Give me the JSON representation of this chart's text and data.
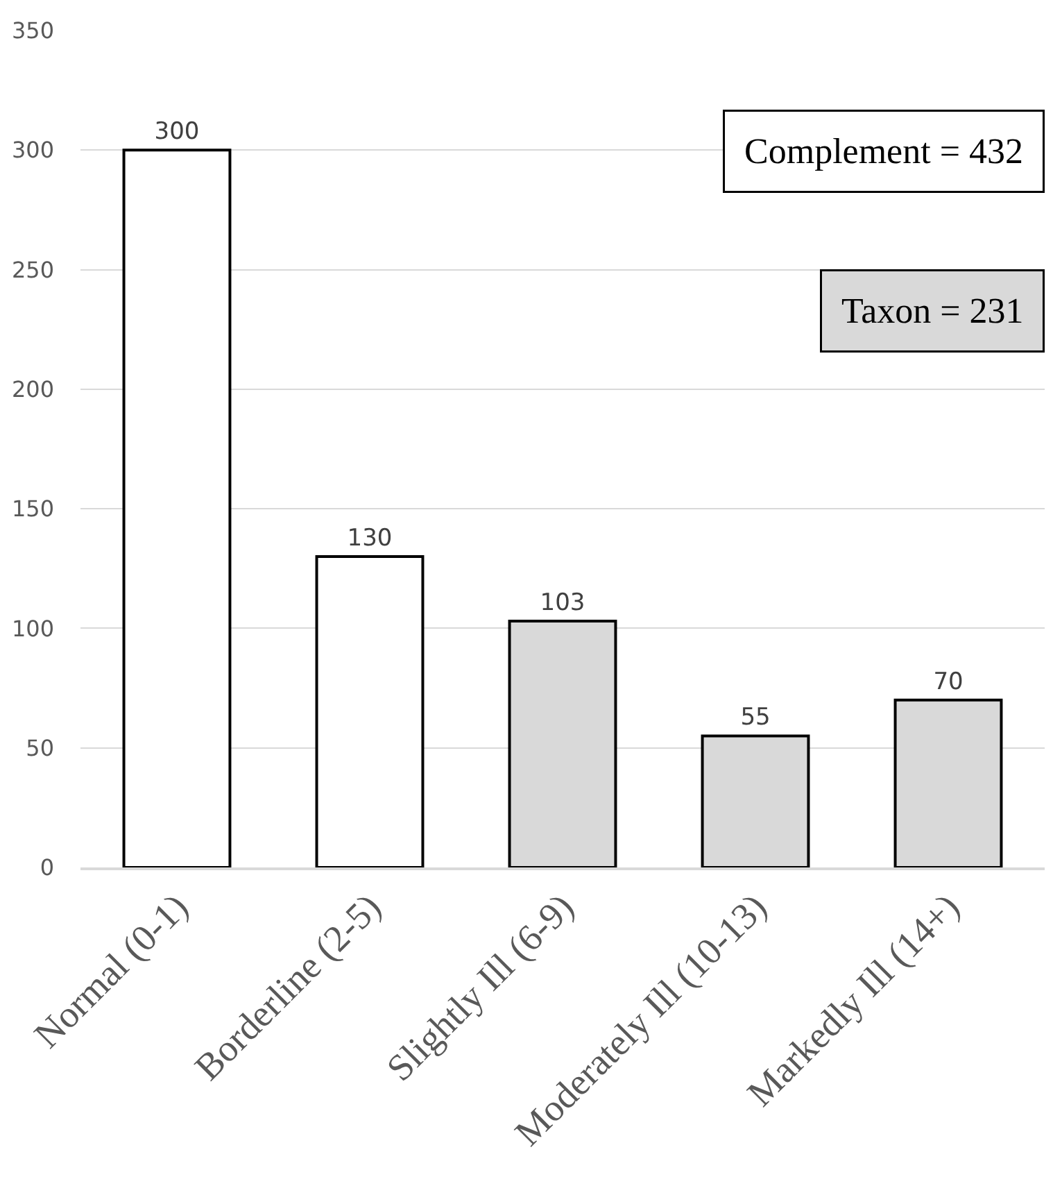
{
  "chart_data": {
    "type": "bar",
    "categories": [
      "Normal (0-1)",
      "Borderline (2-5)",
      "Slightly Ill (6-9)",
      "Moderately Ill (10-13)",
      "Markedly Ill (14+)"
    ],
    "series": [
      {
        "name": "Complement = 432",
        "color": "#ffffff",
        "values": [
          300,
          130,
          null,
          null,
          null
        ]
      },
      {
        "name": "Taxon = 231",
        "color": "#d9d9d9",
        "values": [
          null,
          null,
          103,
          55,
          70
        ]
      }
    ],
    "ylim": [
      0,
      350
    ],
    "yticks": [
      0,
      50,
      100,
      150,
      200,
      250,
      300,
      350
    ],
    "grid": "y",
    "data_labels": true,
    "legend": "top right"
  }
}
